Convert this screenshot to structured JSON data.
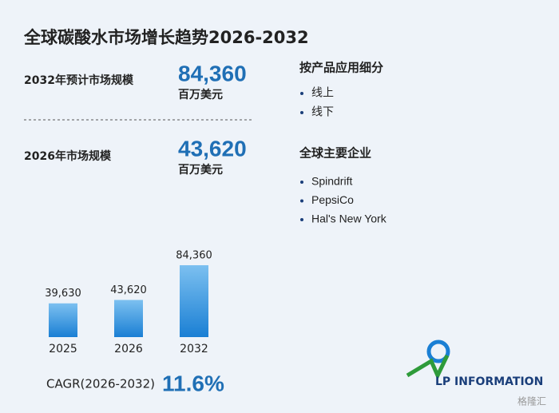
{
  "header": {
    "title": "全球碳酸水市场增长趋势2026-2032"
  },
  "stats": [
    {
      "label": "2032年预计市场规模",
      "value": "84,360",
      "unit": "百万美元"
    },
    {
      "label": "2026年市场规模",
      "value": "43,620",
      "unit": "百万美元"
    }
  ],
  "segments": {
    "title": "按产品应用细分",
    "items": [
      "线上",
      "线下"
    ]
  },
  "companies": {
    "title": "全球主要企业",
    "items": [
      "Spindrift",
      "PepsiCo",
      "Hal's New York"
    ]
  },
  "chart_data": {
    "type": "bar",
    "categories": [
      "2025",
      "2026",
      "2032"
    ],
    "values": [
      39630,
      43620,
      84360
    ],
    "value_labels": [
      "39,630",
      "43,620",
      "84,360"
    ],
    "color": "#1a7fd4",
    "ylim": [
      0,
      90000
    ]
  },
  "cagr": {
    "label": "CAGR(2026-2032)",
    "value": "11.6%"
  },
  "logo": {
    "text": "LP INFORMATION"
  },
  "watermark": {
    "text": "格隆汇"
  }
}
